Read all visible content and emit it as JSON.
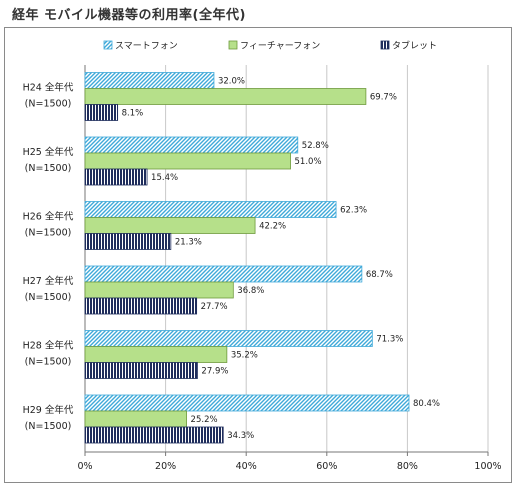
{
  "title": "経年 モバイル機器等の利用率(全年代)",
  "chart_data": {
    "type": "bar",
    "orientation": "horizontal",
    "categories": [
      [
        "H24 全年代",
        "(N=1500)"
      ],
      [
        "H25 全年代",
        "(N=1500)"
      ],
      [
        "H26 全年代",
        "(N=1500)"
      ],
      [
        "H27 全年代",
        "(N=1500)"
      ],
      [
        "H28 全年代",
        "(N=1500)"
      ],
      [
        "H29 全年代",
        "(N=1500)"
      ]
    ],
    "series": [
      {
        "name": "スマートフォン",
        "values": [
          32.0,
          52.8,
          62.3,
          68.7,
          71.3,
          80.4
        ],
        "color": "#3fa9d9",
        "pattern": "diagonal-hatch"
      },
      {
        "name": "フィーチャーフォン",
        "values": [
          69.7,
          51.0,
          42.2,
          36.8,
          35.2,
          25.2
        ],
        "color": "#b6e08a",
        "pattern": "solid"
      },
      {
        "name": "タブレット",
        "values": [
          8.1,
          15.4,
          21.3,
          27.7,
          27.9,
          34.3
        ],
        "color": "#1f2d5c",
        "pattern": "vertical-stripes"
      }
    ],
    "xlim": [
      0,
      100
    ],
    "xticks": [
      "0%",
      "20%",
      "40%",
      "60%",
      "80%",
      "100%"
    ],
    "value_suffix": "%",
    "legend_position": "top",
    "grid": true
  }
}
